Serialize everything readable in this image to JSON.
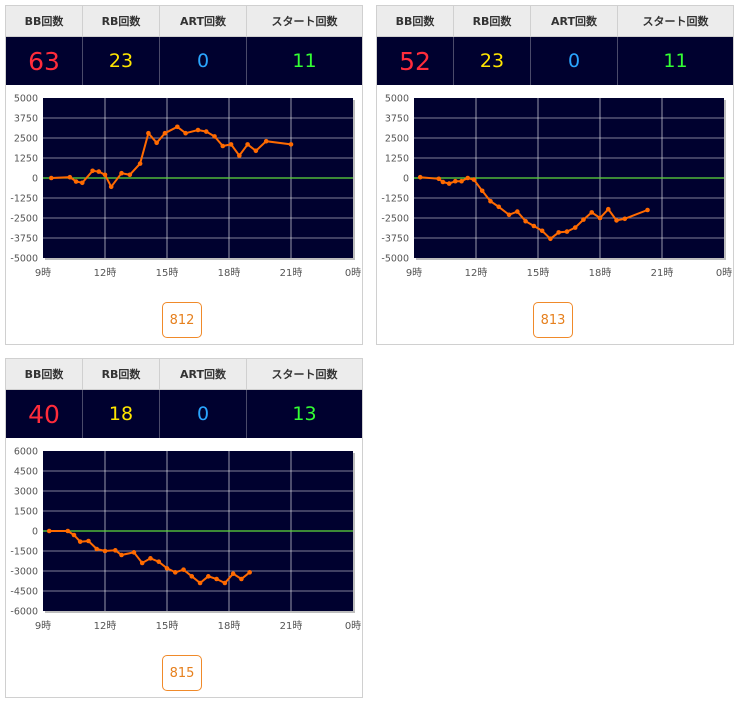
{
  "headers": {
    "bb": "BB回数",
    "rb": "RB回数",
    "art": "ART回数",
    "start": "スタート回数"
  },
  "x_ticks": [
    "9時",
    "12時",
    "15時",
    "18時",
    "21時",
    "0時"
  ],
  "colors": {
    "plot_bg": "#00012f",
    "grid": "#ffffff",
    "zero_line": "#5fdc3b",
    "series": "#ff6a00",
    "bb": "#ff2c3b",
    "rb": "#ffe600",
    "art": "#2aa6ff",
    "start": "#33ff33",
    "button": "#f08a2a"
  },
  "machines": [
    {
      "machine_no": "812",
      "bb": "63",
      "rb": "23",
      "art": "0",
      "start": "11",
      "chart_data": {
        "type": "line",
        "x_range_hours": [
          9,
          24
        ],
        "ylim": [
          -5000,
          5000
        ],
        "y_ticks": [
          "5000",
          "3750",
          "2500",
          "1250",
          "0",
          "-1250",
          "-2500",
          "-3750",
          "-5000"
        ],
        "points": [
          [
            9.4,
            0
          ],
          [
            10.3,
            50
          ],
          [
            10.6,
            -220
          ],
          [
            10.9,
            -300
          ],
          [
            11.4,
            450
          ],
          [
            11.7,
            400
          ],
          [
            12.0,
            200
          ],
          [
            12.3,
            -550
          ],
          [
            12.8,
            300
          ],
          [
            13.2,
            200
          ],
          [
            13.7,
            900
          ],
          [
            14.1,
            2800
          ],
          [
            14.5,
            2200
          ],
          [
            14.9,
            2800
          ],
          [
            15.5,
            3200
          ],
          [
            15.9,
            2800
          ],
          [
            16.5,
            3000
          ],
          [
            16.9,
            2900
          ],
          [
            17.3,
            2600
          ],
          [
            17.7,
            2000
          ],
          [
            18.1,
            2100
          ],
          [
            18.5,
            1400
          ],
          [
            18.9,
            2100
          ],
          [
            19.3,
            1700
          ],
          [
            19.8,
            2300
          ],
          [
            21.0,
            2100
          ]
        ]
      }
    },
    {
      "machine_no": "813",
      "bb": "52",
      "rb": "23",
      "art": "0",
      "start": "11",
      "chart_data": {
        "type": "line",
        "x_range_hours": [
          9,
          24
        ],
        "ylim": [
          -5000,
          5000
        ],
        "y_ticks": [
          "5000",
          "3750",
          "2500",
          "1250",
          "0",
          "-1250",
          "-2500",
          "-3750",
          "-5000"
        ],
        "points": [
          [
            9.3,
            50
          ],
          [
            10.2,
            -50
          ],
          [
            10.4,
            -250
          ],
          [
            10.7,
            -350
          ],
          [
            11.0,
            -200
          ],
          [
            11.3,
            -200
          ],
          [
            11.6,
            0
          ],
          [
            11.9,
            -100
          ],
          [
            12.3,
            -800
          ],
          [
            12.7,
            -1450
          ],
          [
            13.1,
            -1800
          ],
          [
            13.6,
            -2300
          ],
          [
            14.0,
            -2100
          ],
          [
            14.4,
            -2700
          ],
          [
            14.8,
            -3000
          ],
          [
            15.2,
            -3300
          ],
          [
            15.6,
            -3800
          ],
          [
            16.0,
            -3400
          ],
          [
            16.4,
            -3350
          ],
          [
            16.8,
            -3100
          ],
          [
            17.2,
            -2600
          ],
          [
            17.6,
            -2150
          ],
          [
            18.0,
            -2500
          ],
          [
            18.4,
            -1950
          ],
          [
            18.8,
            -2650
          ],
          [
            19.2,
            -2550
          ],
          [
            20.3,
            -2000
          ]
        ]
      }
    },
    {
      "machine_no": "815",
      "bb": "40",
      "rb": "18",
      "art": "0",
      "start": "13",
      "chart_data": {
        "type": "line",
        "x_range_hours": [
          9,
          24
        ],
        "ylim": [
          -6000,
          6000
        ],
        "y_ticks": [
          "6000",
          "4500",
          "3000",
          "1500",
          "0",
          "-1500",
          "-3000",
          "-4500",
          "-6000"
        ],
        "points": [
          [
            9.3,
            0
          ],
          [
            10.2,
            0
          ],
          [
            10.5,
            -300
          ],
          [
            10.8,
            -800
          ],
          [
            11.2,
            -750
          ],
          [
            11.6,
            -1350
          ],
          [
            12.0,
            -1500
          ],
          [
            12.5,
            -1450
          ],
          [
            12.8,
            -1800
          ],
          [
            13.4,
            -1600
          ],
          [
            13.8,
            -2400
          ],
          [
            14.2,
            -2050
          ],
          [
            14.6,
            -2300
          ],
          [
            15.0,
            -2800
          ],
          [
            15.4,
            -3100
          ],
          [
            15.8,
            -2900
          ],
          [
            16.2,
            -3400
          ],
          [
            16.6,
            -3900
          ],
          [
            17.0,
            -3400
          ],
          [
            17.4,
            -3600
          ],
          [
            17.8,
            -3900
          ],
          [
            18.2,
            -3200
          ],
          [
            18.6,
            -3600
          ],
          [
            19.0,
            -3100
          ]
        ]
      }
    }
  ]
}
